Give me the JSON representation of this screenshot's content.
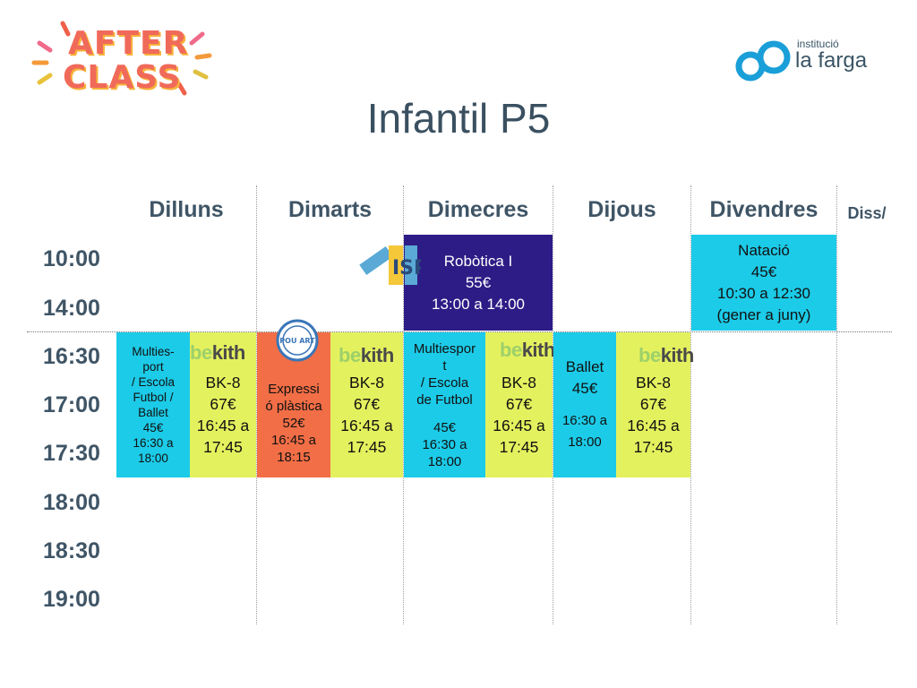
{
  "header": {
    "logo_left": "AFTER CLASS",
    "logo_left_line1": "AFTER",
    "logo_left_line2": "CLASS",
    "logo_right_small": "institució",
    "logo_right_big": "la farga",
    "title": "Infantil P5"
  },
  "days": [
    "Dilluns",
    "Dimarts",
    "Dimecres",
    "Dijous",
    "Divendres",
    "Diss/"
  ],
  "times": [
    "10:00",
    "14:00",
    "16:30",
    "17:00",
    "17:30",
    "18:00",
    "18:30",
    "19:00"
  ],
  "activities": {
    "robotica": {
      "lines": [
        "Robòtica I",
        "55€",
        "13:00 a 14:00"
      ]
    },
    "natacio": {
      "lines": [
        "Natació",
        "45€",
        "10:30 a 12:30",
        "(gener a juny)"
      ]
    },
    "multisport_mon": {
      "lines": [
        "Multies-",
        "port",
        "/ Escola",
        "Futbol /",
        "Ballet",
        "45€",
        "16:30 a",
        "18:00"
      ]
    },
    "bk8_mon": {
      "lines": [
        "BK-8",
        "67€",
        "16:45 a",
        "17:45"
      ]
    },
    "expressio_tue": {
      "lines": [
        "Expressi",
        "ó plàstica",
        "52€",
        "16:45 a",
        "18:15"
      ]
    },
    "bk8_tue": {
      "lines": [
        "BK-8",
        "67€",
        "16:45 a",
        "17:45"
      ]
    },
    "multisport_wed": {
      "lines": [
        "Multiespor",
        "t",
        "/ Escola",
        "de Futbol",
        "",
        "45€",
        "16:30 a",
        "18:00"
      ]
    },
    "bk8_wed": {
      "lines": [
        "BK-8",
        "67€",
        "16:45 a",
        "17:45"
      ]
    },
    "ballet_thu": {
      "lines": [
        "Ballet",
        "45€",
        "",
        "16:30 a",
        "18:00"
      ]
    },
    "bk8_thu": {
      "lines": [
        "BK-8",
        "67€",
        "16:45 a",
        "17:45"
      ]
    }
  },
  "logos": {
    "bekith_be": "be",
    "bekith_kith": "kith",
    "pouart_text": "POU ART",
    "isp_text": "ISP"
  },
  "colors": {
    "cyan": "#1ccbe8",
    "lime": "#e4f15e",
    "orange": "#f26e46",
    "navy": "#2e1c86",
    "heading": "#3f5566"
  }
}
